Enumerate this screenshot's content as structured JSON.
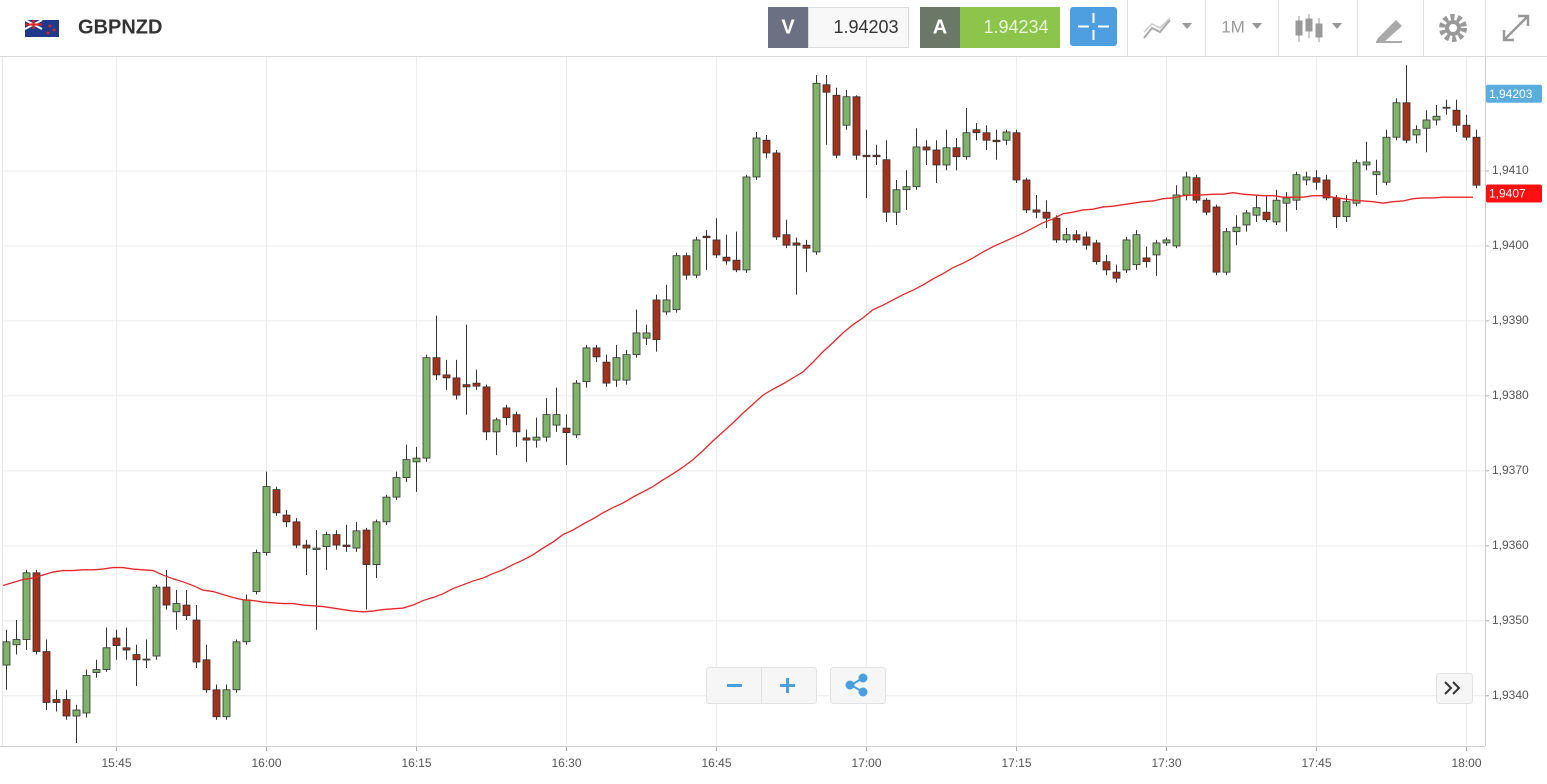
{
  "header": {
    "symbol": "GBPNZD",
    "bid_label": "V",
    "bid": "1.94203",
    "ask_label": "A",
    "ask": "1.94234",
    "timeframe": "1M"
  },
  "chart_data": {
    "type": "candlestick",
    "categories": [
      null,
      null,
      null,
      null,
      null,
      null,
      null,
      null,
      null,
      null,
      null,
      "15:45",
      null,
      null,
      null,
      null,
      null,
      null,
      null,
      null,
      null,
      null,
      null,
      null,
      null,
      null,
      "16:00",
      null,
      null,
      null,
      null,
      null,
      null,
      null,
      null,
      null,
      null,
      null,
      null,
      null,
      null,
      "16:15",
      null,
      null,
      null,
      null,
      null,
      null,
      null,
      null,
      null,
      null,
      null,
      null,
      null,
      null,
      "16:30",
      null,
      null,
      null,
      null,
      null,
      null,
      null,
      null,
      null,
      null,
      null,
      null,
      null,
      null,
      "16:45",
      null,
      null,
      null,
      null,
      null,
      null,
      null,
      null,
      null,
      null,
      null,
      null,
      null,
      null,
      "17:00",
      null,
      null,
      null,
      null,
      null,
      null,
      null,
      null,
      null,
      null,
      null,
      null,
      null,
      null,
      "17:15",
      null,
      null,
      null,
      null,
      null,
      null,
      null,
      null,
      null,
      null,
      null,
      null,
      null,
      null,
      "17:30",
      null,
      null,
      null,
      null,
      null,
      null,
      null,
      null,
      null,
      null,
      null,
      null,
      null,
      null,
      "17:45",
      null,
      null,
      null,
      null,
      null,
      null,
      null,
      null,
      null,
      null,
      null,
      null,
      null,
      null,
      "18:00",
      null
    ],
    "candles": {
      "up_color": "#7fb36a",
      "down_color": "#a2321c",
      "ohlc": [
        [
          1.93441,
          1.93488,
          1.93408,
          1.93472
        ],
        [
          1.93468,
          1.93501,
          1.93455,
          1.93475
        ],
        [
          1.93475,
          1.93568,
          1.93461,
          1.93564
        ],
        [
          1.93564,
          1.93568,
          1.93455,
          1.93459
        ],
        [
          1.93459,
          1.93475,
          1.93381,
          1.93391
        ],
        [
          1.93395,
          1.93408,
          1.93379,
          1.93391
        ],
        [
          1.93395,
          1.93408,
          1.93368,
          1.93373
        ],
        [
          1.93373,
          1.93388,
          1.93337,
          1.93381
        ],
        [
          1.93377,
          1.93435,
          1.93371,
          1.93427
        ],
        [
          1.93431,
          1.93448,
          1.93424,
          1.93435
        ],
        [
          1.93435,
          1.93491,
          1.93432,
          1.93464
        ],
        [
          1.93477,
          1.93488,
          1.93448,
          1.93467
        ],
        [
          1.93464,
          1.93491,
          1.93448,
          1.93461
        ],
        [
          1.93455,
          1.93468,
          1.93413,
          1.93448
        ],
        [
          1.93448,
          1.93475,
          1.93437,
          1.93449
        ],
        [
          1.93453,
          1.93548,
          1.93448,
          1.93545
        ],
        [
          1.93545,
          1.93568,
          1.93515,
          1.93521
        ],
        [
          1.93512,
          1.93541,
          1.93488,
          1.93523
        ],
        [
          1.93521,
          1.93541,
          1.93501,
          1.93507
        ],
        [
          1.93501,
          1.93521,
          1.93437,
          1.93445
        ],
        [
          1.93448,
          1.93468,
          1.93404,
          1.93408
        ],
        [
          1.93408,
          1.93415,
          1.93368,
          1.93372
        ],
        [
          1.93372,
          1.93415,
          1.93368,
          1.93408
        ],
        [
          1.93408,
          1.93475,
          1.93404,
          1.93472
        ],
        [
          1.93472,
          1.93535,
          1.93468,
          1.93528
        ],
        [
          1.93539,
          1.93595,
          1.93535,
          1.93591
        ],
        [
          1.93591,
          1.93699,
          1.93587,
          1.93679
        ],
        [
          1.93675,
          1.93679,
          1.9364,
          1.93644
        ],
        [
          1.93641,
          1.93648,
          1.93625,
          1.93632
        ],
        [
          1.93632,
          1.93637,
          1.93597,
          1.93601
        ],
        [
          1.93601,
          1.93608,
          1.93561,
          1.93597
        ],
        [
          1.93595,
          1.93621,
          1.93488,
          1.93597
        ],
        [
          1.93599,
          1.93619,
          1.93568,
          1.93615
        ],
        [
          1.93615,
          1.93621,
          1.93595,
          1.93601
        ],
        [
          1.93601,
          1.93628,
          1.93592,
          1.93599
        ],
        [
          1.93597,
          1.93632,
          1.93592,
          1.9362
        ],
        [
          1.93621,
          1.93624,
          1.93515,
          1.93575
        ],
        [
          1.93575,
          1.93635,
          1.93557,
          1.93632
        ],
        [
          1.93632,
          1.93668,
          1.93628,
          1.93665
        ],
        [
          1.93665,
          1.93699,
          1.93661,
          1.93691
        ],
        [
          1.93691,
          1.93735,
          1.93685,
          1.93715
        ],
        [
          1.93712,
          1.93732,
          1.93672,
          1.93717
        ],
        [
          1.93717,
          1.93855,
          1.93712,
          1.93851
        ],
        [
          1.93851,
          1.93907,
          1.93821,
          1.93828
        ],
        [
          1.93828,
          1.93848,
          1.93808,
          1.93824
        ],
        [
          1.93824,
          1.93848,
          1.93795,
          1.93801
        ],
        [
          1.93815,
          1.93895,
          1.93775,
          1.93812
        ],
        [
          1.93817,
          1.93835,
          1.93808,
          1.93813
        ],
        [
          1.93812,
          1.93815,
          1.93741,
          1.93752
        ],
        [
          1.93752,
          1.93771,
          1.93721,
          1.93768
        ],
        [
          1.93784,
          1.93788,
          1.93761,
          1.93771
        ],
        [
          1.93775,
          1.93779,
          1.93732,
          1.93752
        ],
        [
          1.93744,
          1.93755,
          1.93712,
          1.93741
        ],
        [
          1.93741,
          1.93771,
          1.93731,
          1.93745
        ],
        [
          1.93745,
          1.93797,
          1.93739,
          1.93775
        ],
        [
          1.93761,
          1.93811,
          1.93752,
          1.93775
        ],
        [
          1.93757,
          1.93775,
          1.93708,
          1.93751
        ],
        [
          1.93748,
          1.93821,
          1.93744,
          1.93817
        ],
        [
          1.93819,
          1.93868,
          1.93811,
          1.93864
        ],
        [
          1.93864,
          1.93868,
          1.93845,
          1.93852
        ],
        [
          1.93845,
          1.93855,
          1.93812,
          1.93817
        ],
        [
          1.93821,
          1.93868,
          1.93812,
          1.93851
        ],
        [
          1.93821,
          1.93861,
          1.93815,
          1.93855
        ],
        [
          1.93855,
          1.93915,
          1.93851,
          1.93884
        ],
        [
          1.93877,
          1.93895,
          1.93868,
          1.93884
        ],
        [
          1.93928,
          1.93935,
          1.93859,
          1.93875
        ],
        [
          1.93912,
          1.93948,
          1.93908,
          1.93928
        ],
        [
          1.93915,
          1.93991,
          1.93911,
          1.93987
        ],
        [
          1.93987,
          1.93991,
          1.93955,
          1.93961
        ],
        [
          1.93961,
          1.94012,
          1.93957,
          1.94008
        ],
        [
          1.94013,
          1.94021,
          1.93968,
          1.94011
        ],
        [
          1.94008,
          1.94037,
          1.93984,
          1.93988
        ],
        [
          1.93985,
          1.94015,
          1.93975,
          1.9398
        ],
        [
          1.93981,
          1.94019,
          1.93965,
          1.93968
        ],
        [
          1.93968,
          1.94095,
          1.93964,
          1.94092
        ],
        [
          1.94092,
          1.94152,
          1.94088,
          1.94144
        ],
        [
          1.94141,
          1.94148,
          1.94117,
          1.94124
        ],
        [
          1.94124,
          1.94128,
          1.94008,
          1.94012
        ],
        [
          1.94015,
          1.94035,
          1.93997,
          1.94001
        ],
        [
          1.94004,
          1.94011,
          1.93935,
          1.94001
        ],
        [
          1.94001,
          1.94008,
          1.93965,
          1.93997
        ],
        [
          1.93992,
          1.94228,
          1.93988,
          1.94217
        ],
        [
          1.94215,
          1.94228,
          1.94135,
          1.94205
        ],
        [
          1.94201,
          1.94211,
          1.94117,
          1.94121
        ],
        [
          1.94161,
          1.94208,
          1.94155,
          1.94199
        ],
        [
          1.94199,
          1.94201,
          1.94115,
          1.94121
        ],
        [
          1.94121,
          1.94155,
          1.94064,
          1.94119
        ],
        [
          1.94121,
          1.94135,
          1.94108,
          1.94119
        ],
        [
          1.94115,
          1.94141,
          1.94032,
          1.94045
        ],
        [
          1.94045,
          1.94088,
          1.94028,
          1.94075
        ],
        [
          1.94075,
          1.94101,
          1.94048,
          1.94079
        ],
        [
          1.94079,
          1.94157,
          1.94075,
          1.94132
        ],
        [
          1.94132,
          1.94141,
          1.94108,
          1.94128
        ],
        [
          1.94128,
          1.94141,
          1.94084,
          1.94108
        ],
        [
          1.94108,
          1.94155,
          1.94101,
          1.94131
        ],
        [
          1.94131,
          1.94144,
          1.94101,
          1.94119
        ],
        [
          1.94119,
          1.94184,
          1.94115,
          1.94151
        ],
        [
          1.94155,
          1.94164,
          1.94141,
          1.94151
        ],
        [
          1.94151,
          1.94161,
          1.94128,
          1.94141
        ],
        [
          1.94141,
          1.94155,
          1.94115,
          1.94139
        ],
        [
          1.94141,
          1.94155,
          1.94135,
          1.94152
        ],
        [
          1.94151,
          1.94155,
          1.94084,
          1.94088
        ],
        [
          1.94088,
          1.94091,
          1.94044,
          1.94048
        ],
        [
          1.94048,
          1.94068,
          1.94037,
          1.94045
        ],
        [
          1.94045,
          1.94061,
          1.94024,
          1.94037
        ],
        [
          1.94037,
          1.94041,
          1.94004,
          1.94008
        ],
        [
          1.94008,
          1.94024,
          1.94004,
          1.94015
        ],
        [
          1.94015,
          1.94021,
          1.94004,
          1.94008
        ],
        [
          1.94012,
          1.94019,
          1.93995,
          1.94001
        ],
        [
          1.94004,
          1.94008,
          1.93975,
          1.93979
        ],
        [
          1.93979,
          1.93988,
          1.93961,
          1.93968
        ],
        [
          1.93965,
          1.93975,
          1.93951,
          1.93957
        ],
        [
          1.93968,
          1.94012,
          1.93964,
          1.94008
        ],
        [
          1.93975,
          1.94021,
          1.93968,
          1.94015
        ],
        [
          1.93984,
          1.93999,
          1.93971,
          1.93979
        ],
        [
          1.93988,
          1.94008,
          1.9396,
          1.94004
        ],
        [
          1.94004,
          1.94011,
          1.94,
          1.94008
        ],
        [
          1.94,
          1.94081,
          1.93997,
          1.94068
        ],
        [
          1.94068,
          1.94099,
          1.94061,
          1.94092
        ],
        [
          1.94091,
          1.94095,
          1.94057,
          1.94061
        ],
        [
          1.94061,
          1.94064,
          1.94041,
          1.94045
        ],
        [
          1.94052,
          1.94055,
          1.93961,
          1.93965
        ],
        [
          1.93965,
          1.94024,
          1.93961,
          1.94019
        ],
        [
          1.94019,
          1.94041,
          1.94001,
          1.94025
        ],
        [
          1.94028,
          1.94048,
          1.94019,
          1.94044
        ],
        [
          1.94041,
          1.94068,
          1.94032,
          1.94051
        ],
        [
          1.94045,
          1.94068,
          1.94032,
          1.94035
        ],
        [
          1.94032,
          1.94075,
          1.94028,
          1.94061
        ],
        [
          1.94057,
          1.94072,
          1.94019,
          1.94064
        ],
        [
          1.94061,
          1.94099,
          1.94048,
          1.94095
        ],
        [
          1.94088,
          1.94099,
          1.94081,
          1.94092
        ],
        [
          1.94091,
          1.94101,
          1.94075,
          1.94085
        ],
        [
          1.94088,
          1.94095,
          1.94061,
          1.94064
        ],
        [
          1.94064,
          1.94068,
          1.94024,
          1.94039
        ],
        [
          1.94039,
          1.94068,
          1.94032,
          1.94059
        ],
        [
          1.94057,
          1.94115,
          1.94053,
          1.94111
        ],
        [
          1.94108,
          1.94139,
          1.94101,
          1.94112
        ],
        [
          1.94095,
          1.94115,
          1.94068,
          1.94099
        ],
        [
          1.94085,
          1.94155,
          1.94081,
          1.94145
        ],
        [
          1.94145,
          1.94197,
          1.94141,
          1.94191
        ],
        [
          1.94191,
          1.94241,
          1.94137,
          1.94141
        ],
        [
          1.94148,
          1.94161,
          1.94137,
          1.94155
        ],
        [
          1.94157,
          1.94181,
          1.94125,
          1.94168
        ],
        [
          1.94168,
          1.94188,
          1.94161,
          1.94173
        ],
        [
          1.94184,
          1.94195,
          1.94175,
          1.94185
        ],
        [
          1.94181,
          1.94195,
          1.94152,
          1.94161
        ],
        [
          1.94161,
          1.94175,
          1.94141,
          1.94145
        ],
        [
          1.94145,
          1.94155,
          1.94077,
          1.94081
        ]
      ]
    },
    "moving_average": {
      "color": "#e8262a",
      "values": [
        1.93547,
        1.93551,
        1.93555,
        1.93557,
        1.93561,
        1.93565,
        1.93567,
        1.93567,
        1.93568,
        1.93568,
        1.93569,
        1.93571,
        1.93571,
        1.93569,
        1.93568,
        1.93567,
        1.93561,
        1.93556,
        1.93552,
        1.93547,
        1.93541,
        1.93539,
        1.93535,
        1.93531,
        1.93528,
        1.93527,
        1.93525,
        1.93524,
        1.93523,
        1.93523,
        1.93521,
        1.9352,
        1.93519,
        1.93517,
        1.93515,
        1.93513,
        1.93512,
        1.93513,
        1.93515,
        1.93516,
        1.93517,
        1.93521,
        1.93527,
        1.93531,
        1.93536,
        1.93543,
        1.93548,
        1.93553,
        1.93557,
        1.93563,
        1.93568,
        1.93575,
        1.93581,
        1.93588,
        1.93597,
        1.93605,
        1.93615,
        1.93621,
        1.93629,
        1.93636,
        1.93644,
        1.93651,
        1.93657,
        1.93665,
        1.93672,
        1.93679,
        1.93688,
        1.93696,
        1.93705,
        1.93715,
        1.93727,
        1.9374,
        1.93752,
        1.93764,
        1.93777,
        1.93789,
        1.93801,
        1.93809,
        1.93816,
        1.93824,
        1.93832,
        1.93845,
        1.93859,
        1.93871,
        1.93884,
        1.93895,
        1.93904,
        1.93915,
        1.93921,
        1.93928,
        1.93935,
        1.93941,
        1.93948,
        1.93956,
        1.93963,
        1.93971,
        1.93977,
        1.93984,
        1.93992,
        1.93999,
        1.94005,
        1.94011,
        1.94017,
        1.94024,
        1.94031,
        1.94036,
        1.94043,
        1.94045,
        1.94048,
        1.94049,
        1.94052,
        1.94053,
        1.94055,
        1.94057,
        1.94059,
        1.9406,
        1.94063,
        1.94064,
        1.94067,
        1.94068,
        1.94068,
        1.94069,
        1.94069,
        1.94071,
        1.94069,
        1.94068,
        1.94067,
        1.94067,
        1.94065,
        1.94065,
        1.94065,
        1.94067,
        1.94067,
        1.94065,
        1.94063,
        1.94061,
        1.9406,
        1.94059,
        1.94057,
        1.94059,
        1.9406,
        1.94063,
        1.94064,
        1.94064,
        1.94065,
        1.94065,
        1.94065,
        1.94065
      ]
    },
    "ylim": [
      1.93333,
      1.94252
    ],
    "yticks": [
      {
        "value": 1.934,
        "label": "1,9340"
      },
      {
        "value": 1.935,
        "label": "1,9350"
      },
      {
        "value": 1.936,
        "label": "1,9360"
      },
      {
        "value": 1.937,
        "label": "1,9370"
      },
      {
        "value": 1.938,
        "label": "1,9380"
      },
      {
        "value": 1.939,
        "label": "1,9390"
      },
      {
        "value": 1.94,
        "label": "1,9400"
      },
      {
        "value": 1.941,
        "label": "1,9410"
      }
    ],
    "price_labels": [
      {
        "value": 1.94203,
        "label": "1,94203",
        "color": "#5aaddd"
      },
      {
        "value": 1.9407,
        "label": "1,9407",
        "color": "#ff1010"
      }
    ],
    "grid": true
  }
}
